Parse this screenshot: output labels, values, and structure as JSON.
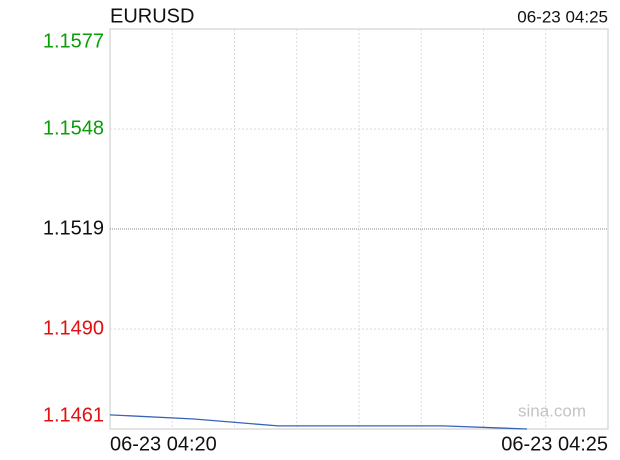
{
  "chart_data": {
    "type": "line",
    "title": "EURUSD",
    "timestamp": "06-23 04:25",
    "watermark": "sina.com",
    "x": [
      0,
      1.35,
      2.7,
      4,
      5.35,
      6.7
    ],
    "xlim": [
      0,
      8
    ],
    "xticks": [
      {
        "value": 0,
        "label": "06-23 04:20"
      },
      {
        "value": 8,
        "label": "06-23 04:25"
      }
    ],
    "xgrid": [
      1,
      2,
      3,
      4,
      5,
      6,
      7
    ],
    "series": [
      {
        "name": "EURUSD",
        "color": "#3a62b8",
        "values": [
          1.14651,
          1.14639,
          1.14619,
          1.14619,
          1.14619,
          1.1461
        ]
      }
    ],
    "ylim": [
      1.1461,
      1.1577
    ],
    "yticks": [
      1.1577,
      1.1548,
      1.1519,
      {
        "value": 1.149,
        "label": "1.1490"
      },
      1.1461
    ],
    "base": 1.1519,
    "up_color": "#0a9e0a",
    "down_color": "#e01010",
    "grid": true
  }
}
